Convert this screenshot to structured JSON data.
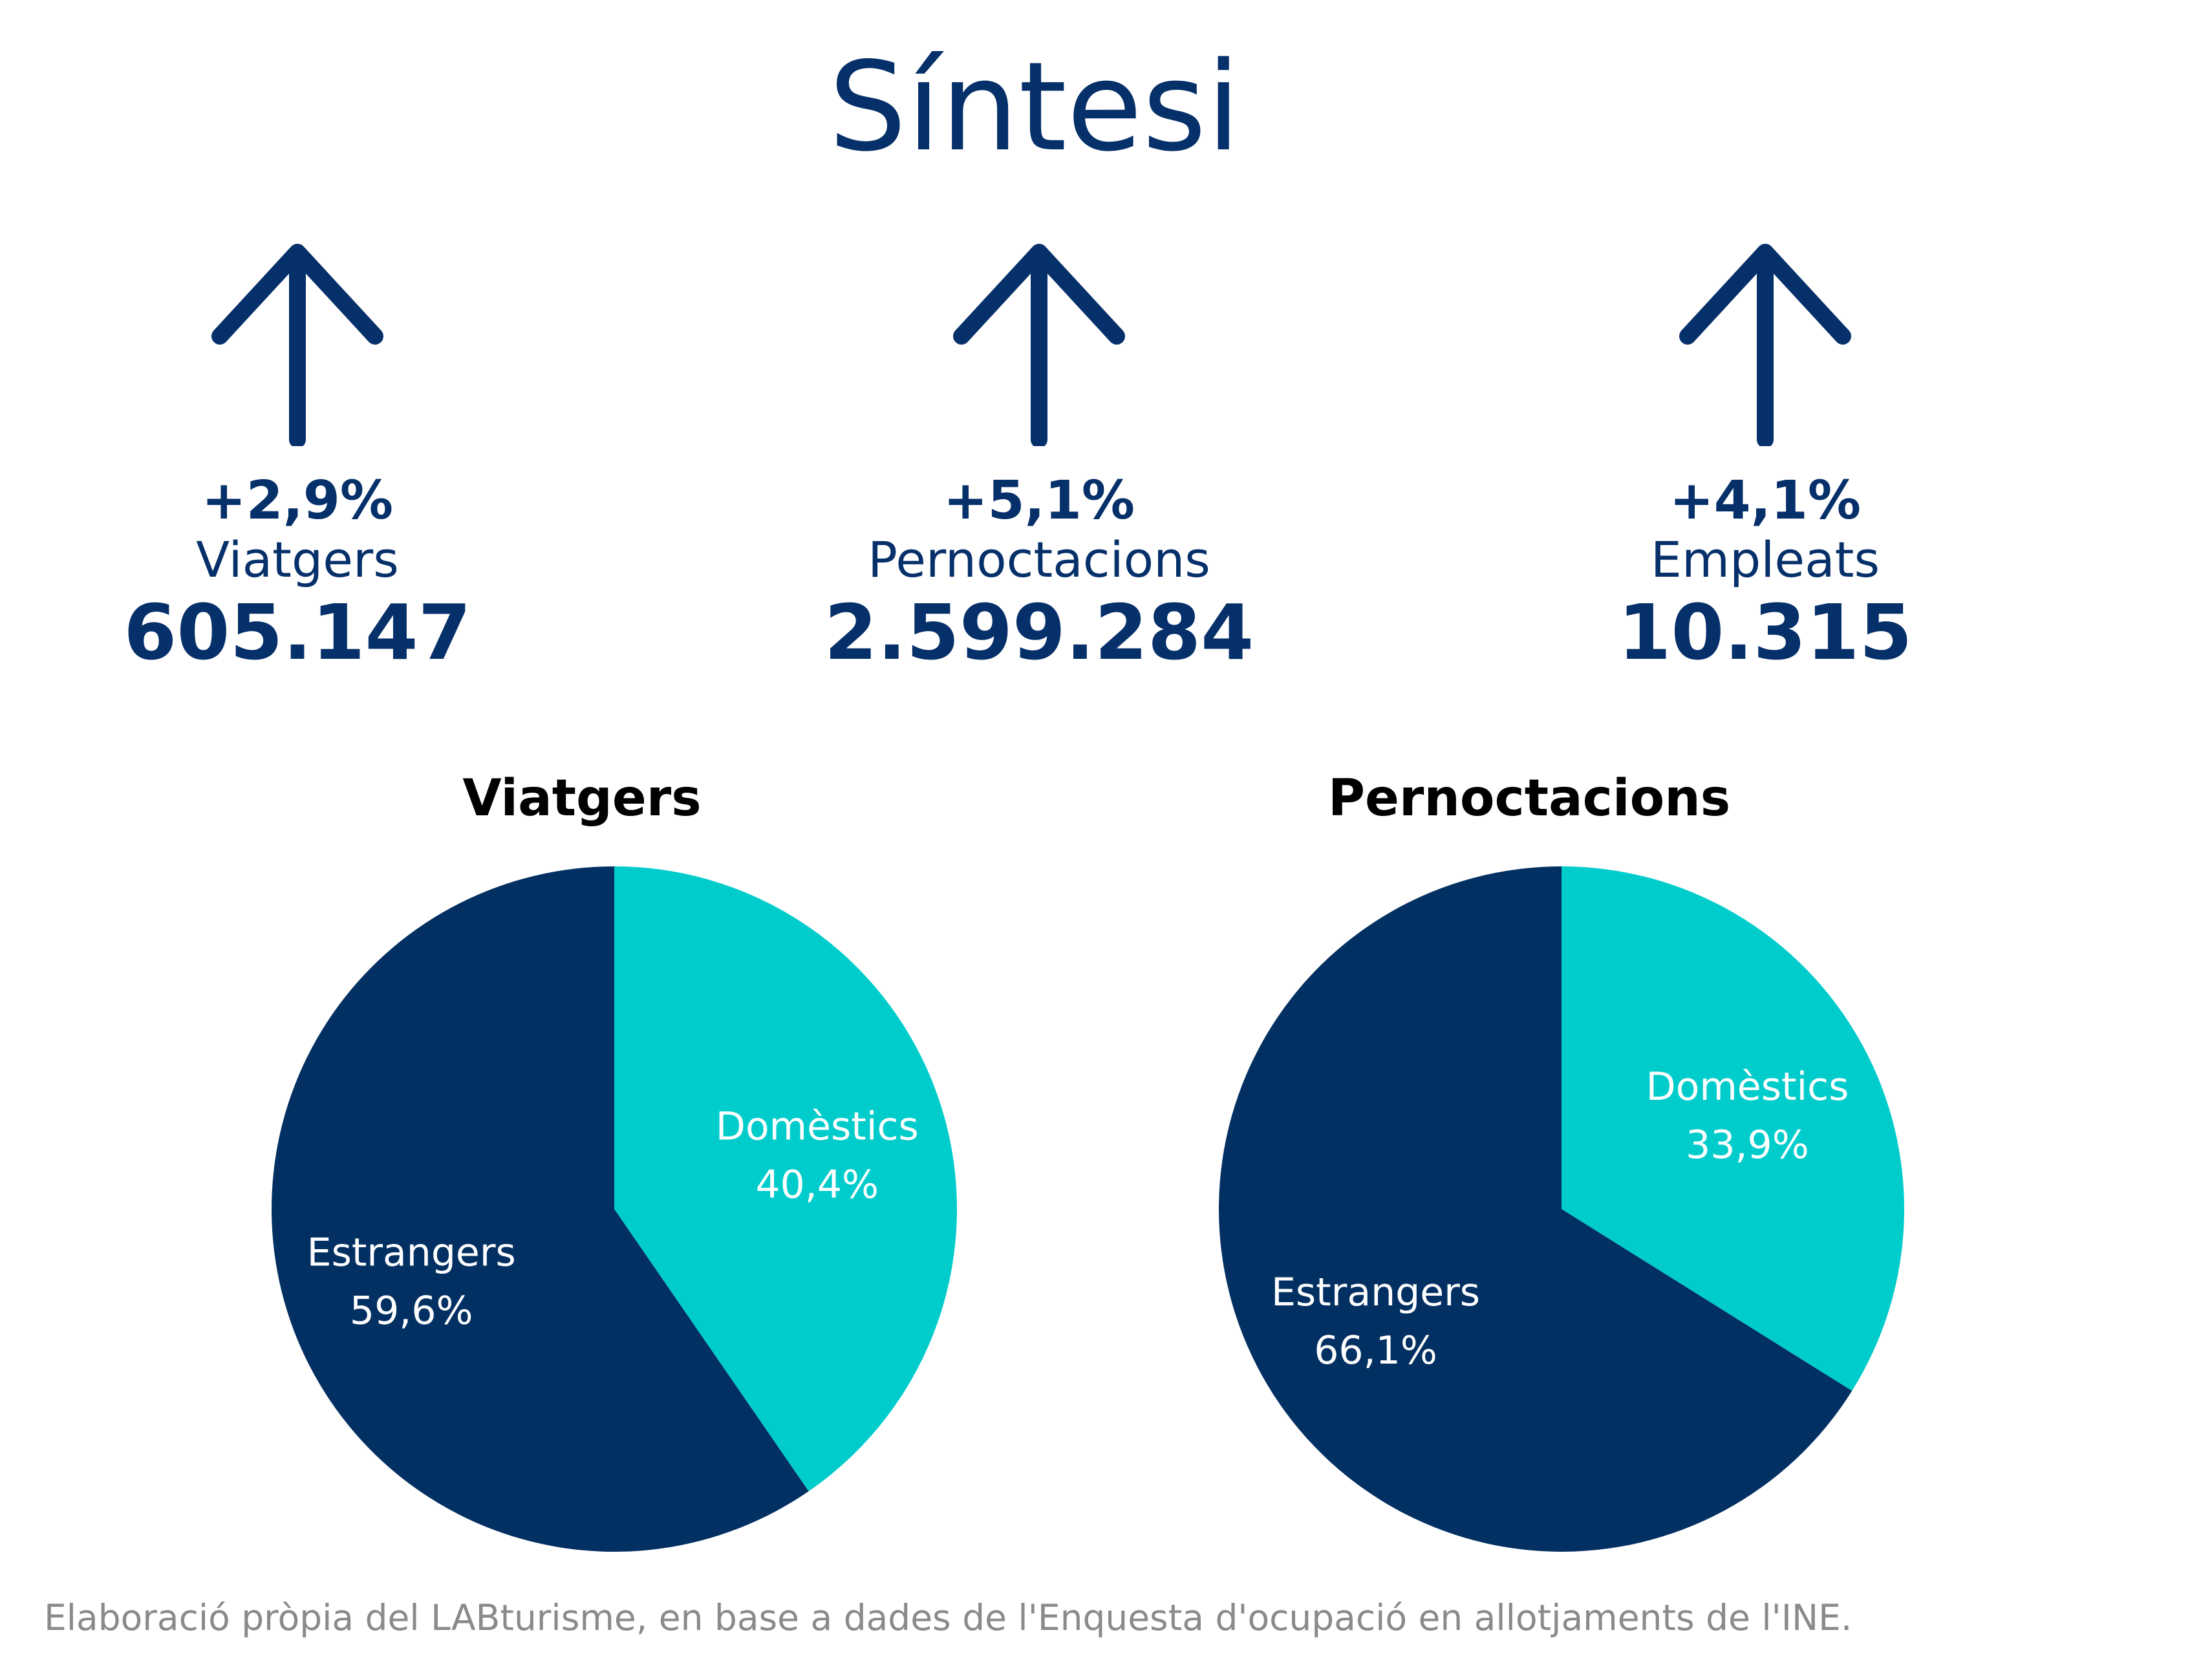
{
  "title": "Síntesi",
  "kpis": [
    {
      "change": "+2,9%",
      "label": "Viatgers",
      "value": "605.147",
      "icon": "arrow-up-icon"
    },
    {
      "change": "+5,1%",
      "label": "Pernoctacions",
      "value": "2.599.284",
      "icon": "arrow-up-icon"
    },
    {
      "change": "+4,1%",
      "label": "Empleats",
      "value": "10.315",
      "icon": "arrow-up-icon"
    }
  ],
  "chart_data": [
    {
      "type": "pie",
      "title": "Viatgers",
      "categories": [
        "Domèstics",
        "Estrangers"
      ],
      "values": [
        40.4,
        59.6
      ],
      "value_labels": [
        "40,4%",
        "59,6%"
      ],
      "colors": [
        "#00cccc",
        "#033062"
      ]
    },
    {
      "type": "pie",
      "title": "Pernoctacions",
      "categories": [
        "Domèstics",
        "Estrangers"
      ],
      "values": [
        33.9,
        66.1
      ],
      "value_labels": [
        "33,9%",
        "66,1%"
      ],
      "colors": [
        "#00cccc",
        "#033062"
      ]
    }
  ],
  "footer": "Elaboració pròpia del LABturisme, en base a dades de l'Enquesta d'ocupació en allotjaments de l'INE."
}
